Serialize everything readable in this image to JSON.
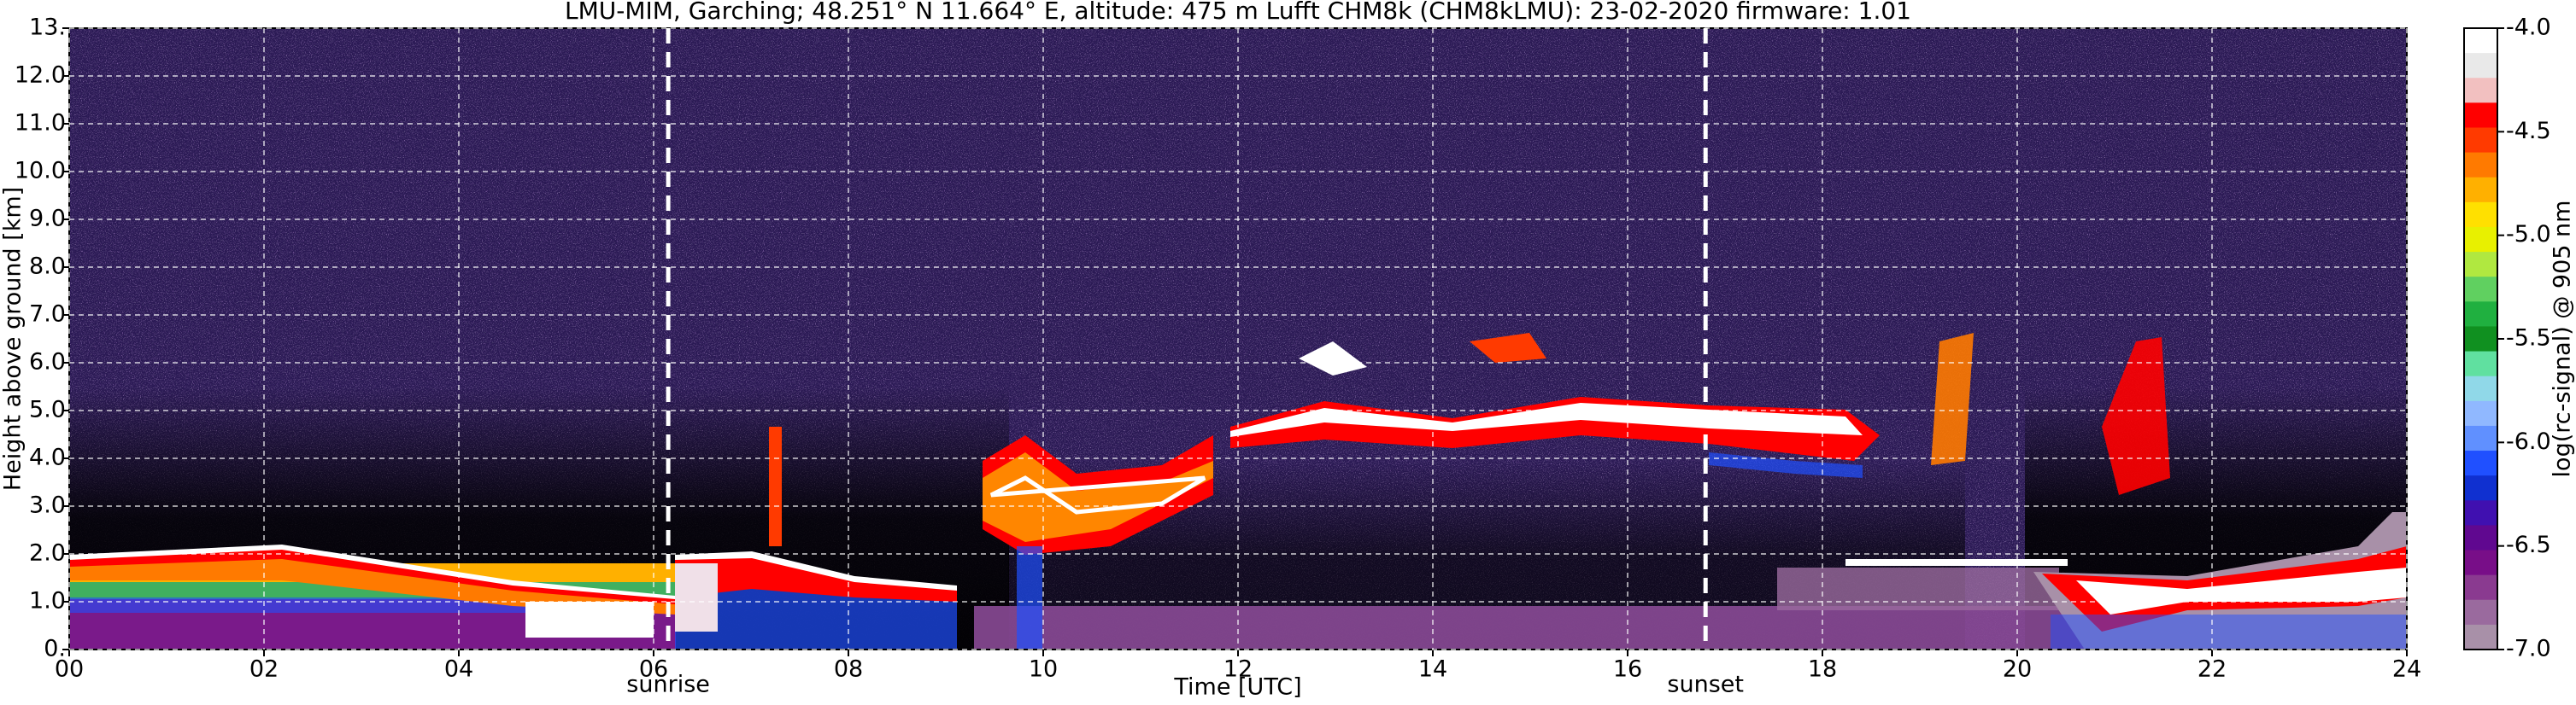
{
  "chart_data": {
    "type": "heatmap",
    "title": "LMU-MIM, Garching; 48.251° N 11.664° E, altitude: 475 m    Lufft CHM8k (CHM8kLMU): 23-02-2020    firmware: 1.01",
    "x_label": "Time [UTC]",
    "y_label": "Height above ground [km]",
    "colorbar_label": "log(rc-signal) @ 905 nm",
    "xlim": [
      0,
      24
    ],
    "xticks": [
      {
        "value": 0,
        "label": "00"
      },
      {
        "value": 2,
        "label": "02"
      },
      {
        "value": 4,
        "label": "04"
      },
      {
        "value": 6,
        "label": "06"
      },
      {
        "value": 8,
        "label": "08"
      },
      10,
      12,
      14,
      16,
      18,
      20,
      22,
      24
    ],
    "ylim": [
      0,
      13
    ],
    "yticks": [
      {
        "value": 0,
        "label": "0."
      },
      {
        "value": 1,
        "label": "1.0"
      },
      {
        "value": 2,
        "label": "2.0"
      },
      {
        "value": 3,
        "label": "3.0"
      },
      {
        "value": 4,
        "label": "4.0"
      },
      {
        "value": 5,
        "label": "5.0"
      },
      {
        "value": 6,
        "label": "6.0"
      },
      {
        "value": 7,
        "label": "7.0"
      },
      {
        "value": 8,
        "label": "8.0"
      },
      {
        "value": 9,
        "label": "9.0"
      },
      {
        "value": 10,
        "label": "10.0"
      },
      {
        "value": 11,
        "label": "11.0"
      },
      {
        "value": 12,
        "label": "12.0"
      },
      {
        "value": 13,
        "label": "13."
      }
    ],
    "clim": [
      -7.0,
      -4.0
    ],
    "cticks": [
      {
        "value": -4.0,
        "label": "-4.0"
      },
      {
        "value": -4.5,
        "label": "-4.5"
      },
      {
        "value": -5.0,
        "label": "-5.0"
      },
      {
        "value": -5.5,
        "label": "-5.5"
      },
      {
        "value": -6.0,
        "label": "-6.0"
      },
      {
        "value": -6.5,
        "label": "-6.5"
      },
      {
        "value": -7.0,
        "label": "-7.0"
      }
    ],
    "colormap": [
      "#ffffff",
      "#e9e9e9",
      "#f2c0c0",
      "#ff0000",
      "#ff3a00",
      "#ff7a00",
      "#ffb000",
      "#ffe000",
      "#e8f000",
      "#b0e840",
      "#60d060",
      "#20b040",
      "#109020",
      "#60e0a0",
      "#90d8e8",
      "#90b8ff",
      "#6090ff",
      "#2050ff",
      "#1030d0",
      "#4010b0",
      "#600890",
      "#780e88",
      "#8a3a90",
      "#9a6a9e",
      "#a890a8"
    ],
    "grid": true,
    "annotations": [
      {
        "x": 6.15,
        "label": "sunrise"
      },
      {
        "x": 16.8,
        "label": "sunset"
      }
    ]
  }
}
